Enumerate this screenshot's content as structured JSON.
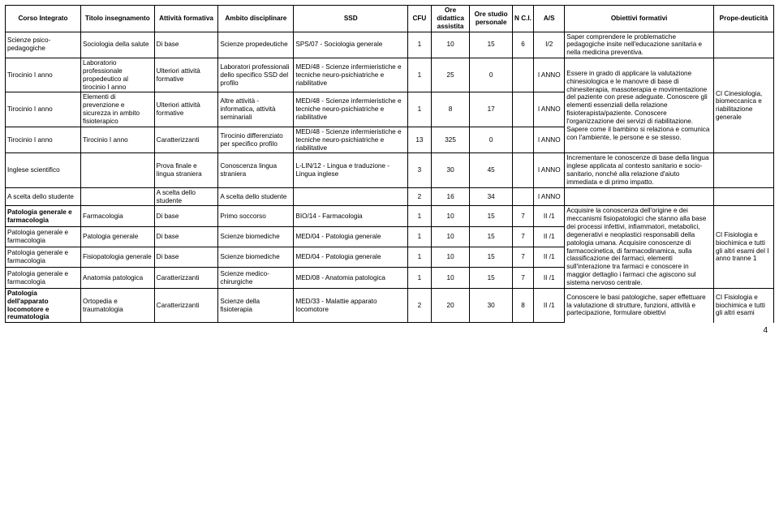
{
  "headers": {
    "corso": "Corso Integrato",
    "titolo": "Titolo insegnamento",
    "attivita": "Attività formativa",
    "ambito": "Ambito disciplinare",
    "ssd": "SSD",
    "cfu": "CFU",
    "ore_did": "Ore didattica assistita",
    "ore_stud": "Ore studio personale",
    "nci": "N C.I.",
    "as": "A/S",
    "obiettivi": "Obiettivi formativi",
    "proped": "Prope-deuticità"
  },
  "rows": [
    {
      "corso": "Scienze psico-pedagogiche",
      "titolo": "Sociologia della salute",
      "attivita": "Di base",
      "ambito": "Scienze propedeutiche",
      "ssd": "SPS/07 - Sociologia generale",
      "cfu": "1",
      "ore_did": "10",
      "ore_stud": "15",
      "nci": "6",
      "as": "I/2",
      "obiettivi": "Saper comprendere le problematiche pedagogiche insite nell'educazione sanitaria e nella medicina preventiva."
    },
    {
      "corso": "Tirocinio I anno",
      "titolo": "Laboratorio professionale propedeutico al tirocinio I anno",
      "attivita": "Ulteriori attività formative",
      "ambito": "Laboratori professionali dello specifico SSD del profilo",
      "ssd": "MED/48 - Scienze infermieristiche e tecniche neuro-psichiatriche e riabilitative",
      "cfu": "1",
      "ore_did": "25",
      "ore_stud": "0",
      "nci": "",
      "as": "I ANNO",
      "obiettivi": "Essere in grado di applicare la valutazione chinesiologica e le manovre di base di chinesiterapia, massoterapia e movimentazione del paziente con prese adeguate. Conoscere gli elementi essenziali della relazione fisioterapista/paziente. Conoscere l'organizzazione dei servizi di riabilitazione. Sapere come il bambino si relaziona e comunica con l'ambiente, le persone e se stesso.",
      "proped": "CI Cinesiologia, biomeccanica e riabilitazione generale"
    },
    {
      "corso": "Tirocinio I anno",
      "titolo": "Elementi di prevenzione e sicurezza in ambito fisioterapico",
      "attivita": "Ulteriori attività formative",
      "ambito": "Altre attività - informatica, attività seminariali",
      "ssd": "MED/48 - Scienze infermieristiche e tecniche neuro-psichiatriche e riabilitative",
      "cfu": "1",
      "ore_did": "8",
      "ore_stud": "17",
      "nci": "",
      "as": "I ANNO"
    },
    {
      "corso": "Tirocinio I anno",
      "titolo": "Tirocinio I anno",
      "attivita": "Caratterizzanti",
      "ambito": "Tirocinio differenziato per specifico profilo",
      "ssd": "MED/48 - Scienze infermieristiche e tecniche neuro-psichiatriche e riabilitative",
      "cfu": "13",
      "ore_did": "325",
      "ore_stud": "0",
      "nci": "",
      "as": "I ANNO"
    },
    {
      "corso": "Inglese scientifico",
      "titolo": "",
      "attivita": "Prova finale e lingua straniera",
      "ambito": "Conoscenza lingua straniera",
      "ssd": "L-LIN/12 - Lingua e traduzione - Lingua inglese",
      "cfu": "3",
      "ore_did": "30",
      "ore_stud": "45",
      "nci": "",
      "as": "I ANNO",
      "obiettivi": "Incrementare le conoscenze di base della lingua inglese applicata al contesto sanitario e socio-sanitario, nonché alla relazione d'aiuto immediata e di primo impatto."
    },
    {
      "corso": "A scelta dello studente",
      "titolo": "",
      "attivita": "A scelta dello studente",
      "ambito": "A scelta dello studente",
      "ssd": "",
      "cfu": "2",
      "ore_did": "16",
      "ore_stud": "34",
      "nci": "",
      "as": "I ANNO",
      "obiettivi": ""
    },
    {
      "corso": "Patologia generale e farmacologia",
      "corso_bold": true,
      "titolo": "Farmacologia",
      "attivita": "Di base",
      "ambito": "Primo soccorso",
      "ssd": "BIO/14 - Farmacologia",
      "cfu": "1",
      "ore_did": "10",
      "ore_stud": "15",
      "nci": "7",
      "as": "II /1",
      "obiettivi": "Acquisire la conoscenza dell'origine e dei meccanismi fisiopatologici che stanno alla base dei processi infettivi, infiammatori, metabolici, degenerativi e neoplastici responsabili della patologia umana. Acquisire conoscenze di farmacocinetica, di farmacodinamica, sulla classificazione dei farmaci, elementi sull'interazione tra farmaci e conoscere in maggior dettaglio i farmaci che agiscono sul sistema nervoso centrale.",
      "proped": "CI Fisiologia e biochimica e tutti gli altri esami del I anno tranne 1"
    },
    {
      "corso": "Patologia generale e farmacologia",
      "titolo": "Patologia generale",
      "attivita": "Di base",
      "ambito": "Scienze biomediche",
      "ssd": "MED/04 - Patologia generale",
      "cfu": "1",
      "ore_did": "10",
      "ore_stud": "15",
      "nci": "7",
      "as": "II /1"
    },
    {
      "corso": "Patologia generale e farmacologia",
      "titolo": "Fisiopatologia generale",
      "attivita": "Di base",
      "ambito": "Scienze biomediche",
      "ssd": "MED/04 - Patologia generale",
      "cfu": "1",
      "ore_did": "10",
      "ore_stud": "15",
      "nci": "7",
      "as": "II /1"
    },
    {
      "corso": "Patologia generale e farmacologia",
      "titolo": "Anatomia patologica",
      "attivita": "Caratterizzanti",
      "ambito": "Scienze medico-chirurgiche",
      "ssd": "MED/08 - Anatomia patologica",
      "cfu": "1",
      "ore_did": "10",
      "ore_stud": "15",
      "nci": "7",
      "as": "II /1"
    },
    {
      "corso": "Patologia dell'apparato locomotore e reumatologia",
      "corso_bold": true,
      "titolo": "Ortopedia e traumatologia",
      "attivita": "Caratterizzanti",
      "ambito": "Scienze della fisioterapia",
      "ssd": "MED/33 - Malattie apparato locomotore",
      "cfu": "2",
      "ore_did": "20",
      "ore_stud": "30",
      "nci": "8",
      "as": "II /1",
      "obiettivi": "Conoscere le basi patologiche, saper effettuare la valutazione di strutture, funzioni, attività e partecipazione, formulare obiettivi",
      "proped": "CI Fisiologia e biochimica e tutti gli altri esami"
    }
  ],
  "page_number": "4"
}
